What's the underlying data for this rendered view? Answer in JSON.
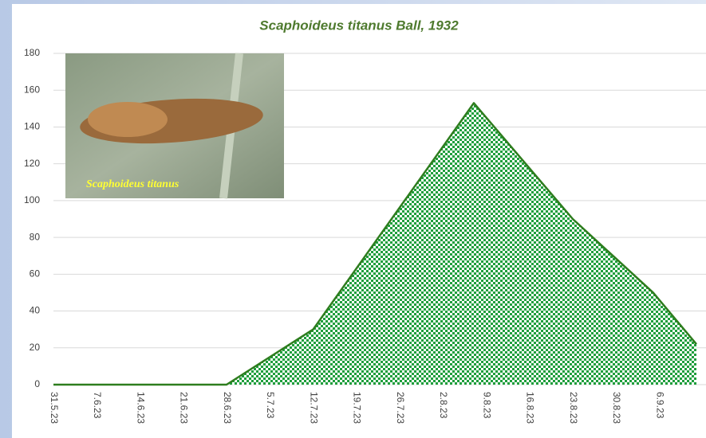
{
  "chart_data": {
    "type": "area",
    "title": "Scaphoideus titanus Ball, 1932",
    "inset_label": "Scaphoideus titanus",
    "x": [
      "31.5.23",
      "28.6.23",
      "12.7.23",
      "7.8.23",
      "23.8.23",
      "5.9.23",
      "12.9.23"
    ],
    "values": [
      0,
      0,
      30,
      153,
      90,
      50,
      22
    ],
    "color": "#2e7d1e",
    "fill_color": "#1f9e3c",
    "xlim": [
      "31.5.23",
      "12.9.23"
    ],
    "xticks": [
      "31.5.23",
      "7.6.23",
      "14.6.23",
      "21.6.23",
      "28.6.23",
      "5.7.23",
      "12.7.23",
      "19.7.23",
      "26.7.23",
      "2.8.23",
      "9.8.23",
      "16.8.23",
      "23.8.23",
      "30.8.23",
      "6.9.23"
    ],
    "ylim": [
      0,
      180
    ],
    "yticks": [
      0,
      20,
      40,
      60,
      80,
      100,
      120,
      140,
      160,
      180
    ],
    "grid": true
  }
}
